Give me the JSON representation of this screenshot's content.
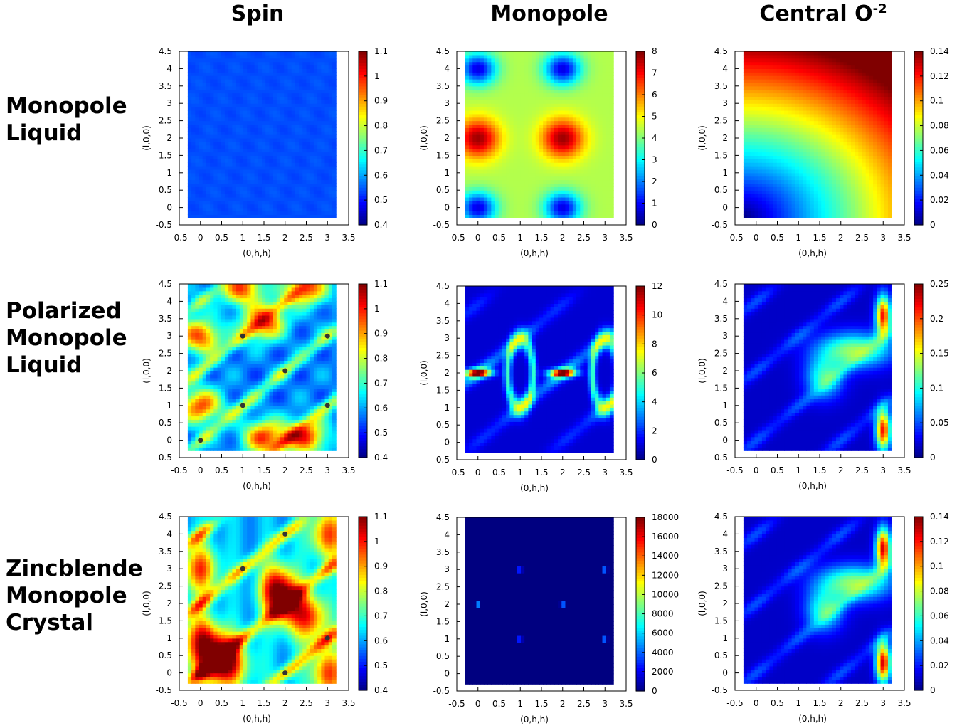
{
  "column_titles": {
    "spin": "Spin",
    "monopole": "Monopole",
    "central_base": "Central O",
    "central_sup": "-2"
  },
  "row_titles": {
    "r1": "Monopole\nLiquid",
    "r2": "Polarized\nMonopole\nLiquid",
    "r3": "Zincblende\nMonopole\nCrystal"
  },
  "chart_data": [
    {
      "type": "heatmap",
      "row": "Monopole Liquid",
      "column": "Spin",
      "xlabel": "(0,h,h)",
      "ylabel": "(l,0,0)",
      "xlim": [
        -0.5,
        3.5
      ],
      "ylim": [
        -0.5,
        4.5
      ],
      "xticks": [
        "-0.5",
        "0",
        "0.5",
        "1",
        "1.5",
        "2",
        "2.5",
        "3",
        "3.5"
      ],
      "yticks": [
        "-0.5",
        "0",
        "0.5",
        "1",
        "1.5",
        "2",
        "2.5",
        "3",
        "3.5",
        "4",
        "4.5"
      ],
      "colorbar_ticks": [
        "0.4",
        "0.5",
        "0.6",
        "0.7",
        "0.8",
        "0.9",
        "1",
        "1.1"
      ],
      "crange": [
        0.4,
        1.1
      ],
      "pattern": "uniform",
      "level": 0.55,
      "points": []
    },
    {
      "type": "heatmap",
      "row": "Monopole Liquid",
      "column": "Monopole",
      "xlabel": "(0,h,h)",
      "ylabel": "(l,0,0)",
      "xlim": [
        -0.5,
        3.5
      ],
      "ylim": [
        -0.5,
        4.5
      ],
      "xticks": [
        "-0.5",
        "0",
        "0.5",
        "1",
        "1.5",
        "2",
        "2.5",
        "3",
        "3.5"
      ],
      "yticks": [
        "-0.5",
        "0",
        "0.5",
        "1",
        "1.5",
        "2",
        "2.5",
        "3",
        "3.5",
        "4",
        "4.5"
      ],
      "colorbar_ticks": [
        "0",
        "1",
        "2",
        "3",
        "4",
        "5",
        "6",
        "7",
        "8"
      ],
      "crange": [
        0,
        8
      ],
      "pattern": "monopole_liquid",
      "points": []
    },
    {
      "type": "heatmap",
      "row": "Monopole Liquid",
      "column": "Central O-2",
      "xlabel": "(0,h,h)",
      "ylabel": "(l,0,0)",
      "xlim": [
        -0.5,
        3.5
      ],
      "ylim": [
        -0.5,
        4.5
      ],
      "xticks": [
        "-0.5",
        "0",
        "0.5",
        "1",
        "1.5",
        "2",
        "2.5",
        "3",
        "3.5"
      ],
      "yticks": [
        "-0.5",
        "0",
        "0.5",
        "1",
        "1.5",
        "2",
        "2.5",
        "3",
        "3.5",
        "4",
        "4.5"
      ],
      "colorbar_ticks": [
        "0",
        "0.02",
        "0.04",
        "0.06",
        "0.08",
        "0.1",
        "0.12",
        "0.14"
      ],
      "crange": [
        0,
        0.14
      ],
      "pattern": "radial",
      "points": []
    },
    {
      "type": "heatmap",
      "row": "Polarized Monopole Liquid",
      "column": "Spin",
      "xlabel": "(0,h,h)",
      "ylabel": "(l,0,0)",
      "xlim": [
        -0.5,
        3.5
      ],
      "ylim": [
        -0.5,
        4.5
      ],
      "xticks": [
        "-0.5",
        "0",
        "0.5",
        "1",
        "1.5",
        "2",
        "2.5",
        "3",
        "3.5"
      ],
      "yticks": [
        "-0.5",
        "0",
        "0.5",
        "1",
        "1.5",
        "2",
        "2.5",
        "3",
        "3.5",
        "4",
        "4.5"
      ],
      "colorbar_ticks": [
        "0.4",
        "0.5",
        "0.6",
        "0.7",
        "0.8",
        "0.9",
        "1",
        "1.1"
      ],
      "crange": [
        0.4,
        1.1
      ],
      "pattern": "spin_pattern",
      "points": [
        [
          1,
          3
        ],
        [
          3,
          3
        ],
        [
          2,
          2
        ],
        [
          1,
          1
        ],
        [
          3,
          1
        ],
        [
          0,
          0
        ]
      ]
    },
    {
      "type": "heatmap",
      "row": "Polarized Monopole Liquid",
      "column": "Monopole",
      "xlabel": "(0,h,h)",
      "ylabel": "(l,0,0)",
      "xlim": [
        -0.5,
        3.5
      ],
      "ylim": [
        -0.5,
        4.5
      ],
      "xticks": [
        "-0.5",
        "0",
        "0.5",
        "1",
        "1.5",
        "2",
        "2.5",
        "3",
        "3.5"
      ],
      "yticks": [
        "-0.5",
        "0",
        "0.5",
        "1",
        "1.5",
        "2",
        "2.5",
        "3",
        "3.5",
        "4",
        "4.5"
      ],
      "colorbar_ticks": [
        "0",
        "2",
        "4",
        "6",
        "8",
        "10",
        "12"
      ],
      "crange": [
        0,
        12
      ],
      "pattern": "monopole_polarized",
      "points": []
    },
    {
      "type": "heatmap",
      "row": "Polarized Monopole Liquid",
      "column": "Central O-2",
      "xlabel": "(0,h,h)",
      "ylabel": "(l,0,0)",
      "xlim": [
        -0.5,
        3.5
      ],
      "ylim": [
        -0.5,
        4.5
      ],
      "xticks": [
        "-0.5",
        "0",
        "0.5",
        "1",
        "1.5",
        "2",
        "2.5",
        "3",
        "3.5"
      ],
      "yticks": [
        "-0.5",
        "0",
        "0.5",
        "1",
        "1.5",
        "2",
        "2.5",
        "3",
        "3.5",
        "4",
        "4.5"
      ],
      "colorbar_ticks": [
        "0",
        "0.05",
        "0.1",
        "0.15",
        "0.2",
        "0.25"
      ],
      "crange": [
        0,
        0.25
      ],
      "pattern": "central_pattern",
      "intensity": 0.8,
      "points": []
    },
    {
      "type": "heatmap",
      "row": "Zincblende Monopole Crystal",
      "column": "Spin",
      "xlabel": "(0,h,h)",
      "ylabel": "(l,0,0)",
      "xlim": [
        -0.5,
        3.5
      ],
      "ylim": [
        -0.5,
        4.5
      ],
      "xticks": [
        "-0.5",
        "0",
        "0.5",
        "1",
        "1.5",
        "2",
        "2.5",
        "3",
        "3.5"
      ],
      "yticks": [
        "-0.5",
        "0",
        "0.5",
        "1",
        "1.5",
        "2",
        "2.5",
        "3",
        "3.5",
        "4",
        "4.5"
      ],
      "colorbar_ticks": [
        "0.4",
        "0.5",
        "0.6",
        "0.7",
        "0.8",
        "0.9",
        "1",
        "1.1"
      ],
      "crange": [
        0.4,
        1.1
      ],
      "pattern": "spin_crystal",
      "points": [
        [
          2,
          4
        ],
        [
          1,
          3
        ],
        [
          3,
          1
        ],
        [
          2,
          0
        ]
      ]
    },
    {
      "type": "heatmap",
      "row": "Zincblende Monopole Crystal",
      "column": "Monopole",
      "xlabel": "(0,h,h)",
      "ylabel": "(l,0,0)",
      "xlim": [
        -0.5,
        3.5
      ],
      "ylim": [
        -0.5,
        4.5
      ],
      "xticks": [
        "-0.5",
        "0",
        "0.5",
        "1",
        "1.5",
        "2",
        "2.5",
        "3",
        "3.5"
      ],
      "yticks": [
        "-0.5",
        "0",
        "0.5",
        "1",
        "1.5",
        "2",
        "2.5",
        "3",
        "3.5",
        "4",
        "4.5"
      ],
      "colorbar_ticks": [
        "0",
        "2000",
        "4000",
        "6000",
        "8000",
        "10000",
        "12000",
        "14000",
        "16000",
        "18000"
      ],
      "crange": [
        0,
        18000
      ],
      "pattern": "bragg",
      "peaks": [
        [
          0,
          2
        ],
        [
          2,
          2
        ],
        [
          1,
          3
        ],
        [
          3,
          3
        ],
        [
          1,
          1
        ],
        [
          3,
          1
        ]
      ],
      "points": []
    },
    {
      "type": "heatmap",
      "row": "Zincblende Monopole Crystal",
      "column": "Central O-2",
      "xlabel": "(0,h,h)",
      "ylabel": "(l,0,0)",
      "xlim": [
        -0.5,
        3.5
      ],
      "ylim": [
        -0.5,
        4.5
      ],
      "xticks": [
        "-0.5",
        "0",
        "0.5",
        "1",
        "1.5",
        "2",
        "2.5",
        "3",
        "3.5"
      ],
      "yticks": [
        "-0.5",
        "0",
        "0.5",
        "1",
        "1.5",
        "2",
        "2.5",
        "3",
        "3.5",
        "4",
        "4.5"
      ],
      "colorbar_ticks": [
        "0",
        "0.02",
        "0.04",
        "0.06",
        "0.08",
        "0.1",
        "0.12",
        "0.14"
      ],
      "crange": [
        0,
        0.14
      ],
      "pattern": "central_pattern",
      "intensity": 0.85,
      "points": []
    }
  ]
}
